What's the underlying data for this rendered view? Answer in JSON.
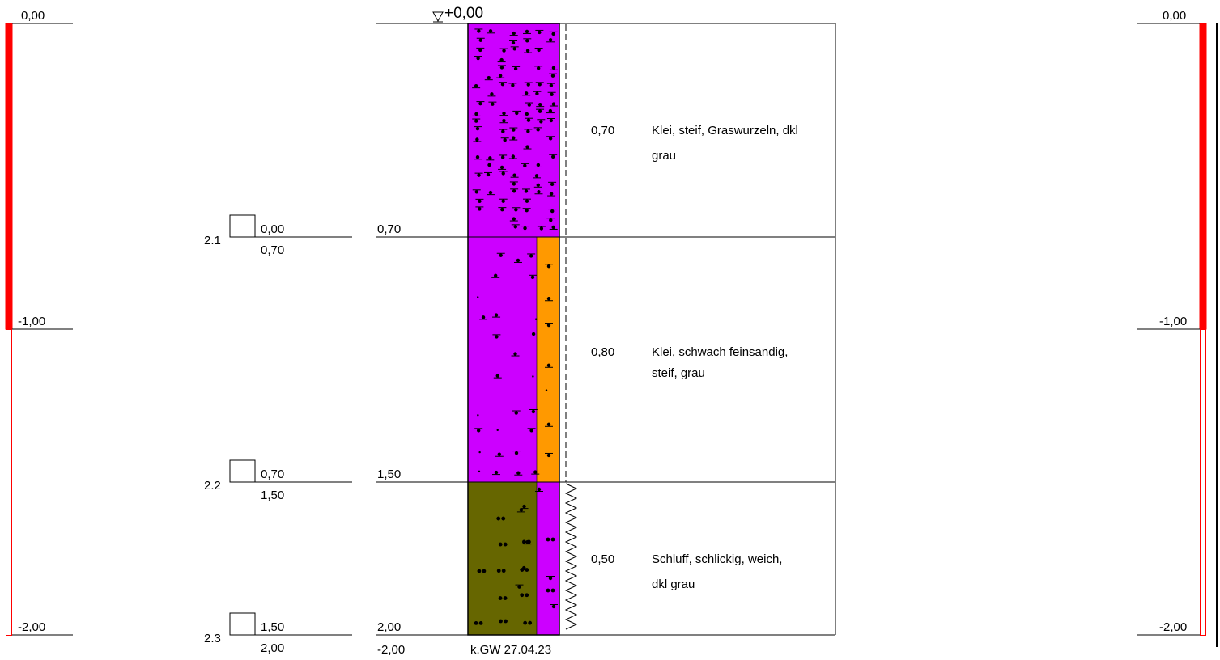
{
  "scale_left": {
    "labels": [
      "0,00",
      "-1,00",
      "-2,00"
    ],
    "color": "#ff0000"
  },
  "scale_right": {
    "labels": [
      "0,00",
      "-1,00",
      "-2,00"
    ],
    "color": "#ff0000"
  },
  "top_level": "+0,00",
  "samples": [
    {
      "id": "2.1",
      "top": "0,00",
      "bottom": "0,70"
    },
    {
      "id": "2.2",
      "top": "0,70",
      "bottom": "1,50"
    },
    {
      "id": "2.3",
      "top": "1,50",
      "bottom": "2,00"
    }
  ],
  "depth_labels": [
    "0,70",
    "1,50",
    "2,00"
  ],
  "final_depth": "-2,00",
  "groundwater_note": "k.GW 27.04.23",
  "layers": [
    {
      "thickness": "0,70",
      "description_lines": [
        "Klei, steif, Graswurzeln, dkl",
        "grau"
      ],
      "colors": [
        "#cc00ff"
      ]
    },
    {
      "thickness": "0,80",
      "description_lines": [
        "Klei, schwach feinsandig,",
        "steif, grau"
      ],
      "colors": [
        "#cc00ff",
        "#ff9900"
      ]
    },
    {
      "thickness": "0,50",
      "description_lines": [
        "Schluff, schlickig, weich,",
        "dkl grau"
      ],
      "colors": [
        "#666600",
        "#cc00ff"
      ]
    }
  ]
}
